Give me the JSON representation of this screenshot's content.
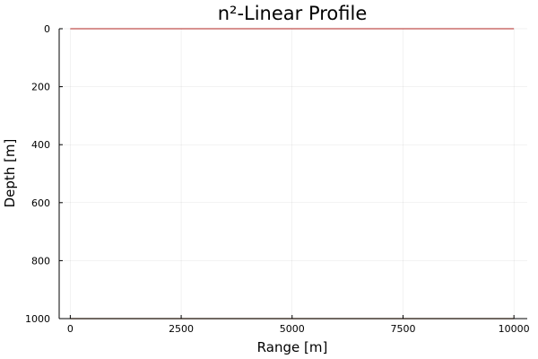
{
  "chart_data": {
    "type": "line",
    "title": "n²-Linear Profile",
    "xlabel": "Range [m]",
    "ylabel": "Depth [m]",
    "xlim": [
      -250,
      10300
    ],
    "ylim": [
      1000,
      0
    ],
    "y_axis_inverted": true,
    "grid": true,
    "legend": "none",
    "x_ticks": [
      0,
      2500,
      5000,
      7500,
      10000
    ],
    "x_tick_labels": [
      "0",
      "2500",
      "5000",
      "7500",
      "10000"
    ],
    "y_ticks": [
      0,
      200,
      400,
      600,
      800,
      1000
    ],
    "y_tick_labels": [
      "0",
      "200",
      "400",
      "600",
      "800",
      "1000"
    ],
    "series": [
      {
        "color": "#c0504d",
        "points": [
          [
            0,
            0
          ],
          [
            10000,
            0
          ]
        ]
      },
      {
        "color": "#8b4513",
        "points": [
          [
            0,
            1000
          ],
          [
            10000,
            1000
          ]
        ]
      }
    ]
  }
}
